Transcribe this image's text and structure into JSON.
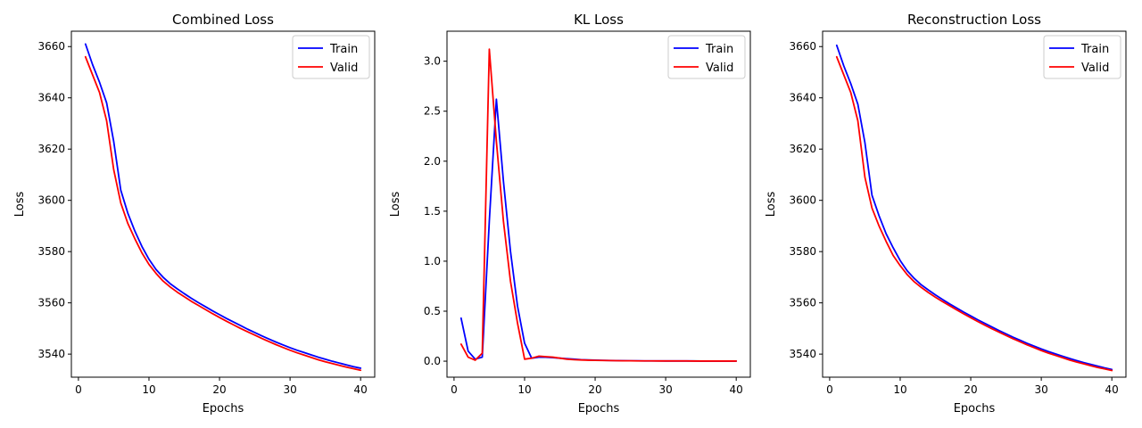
{
  "chart_data": [
    {
      "type": "line",
      "title": "Combined Loss",
      "xlabel": "Epochs",
      "ylabel": "Loss",
      "xlim": [
        -1,
        42
      ],
      "ylim": [
        3531,
        3666
      ],
      "xticks": [
        0,
        10,
        20,
        30,
        40
      ],
      "yticks": [
        3540,
        3560,
        3580,
        3600,
        3620,
        3640,
        3660
      ],
      "ytick_labels": [
        "3540",
        "3560",
        "3580",
        "3600",
        "3620",
        "3640",
        "3660"
      ],
      "legend_position": "top-right",
      "grid": false,
      "x": [
        1,
        2,
        3,
        4,
        5,
        6,
        7,
        8,
        9,
        10,
        11,
        12,
        13,
        14,
        15,
        16,
        17,
        18,
        19,
        20,
        21,
        22,
        23,
        24,
        25,
        26,
        27,
        28,
        29,
        30,
        31,
        32,
        33,
        34,
        35,
        36,
        37,
        38,
        39,
        40
      ],
      "series": [
        {
          "name": "Train",
          "color": "#0000ff",
          "values": [
            3661,
            3653,
            3646,
            3638,
            3623,
            3604,
            3595,
            3588,
            3582,
            3577,
            3573,
            3570,
            3567.5,
            3565.5,
            3563.6,
            3561.8,
            3560.1,
            3558.5,
            3556.9,
            3555.4,
            3553.9,
            3552.5,
            3551.1,
            3549.7,
            3548.4,
            3547.1,
            3545.9,
            3544.7,
            3543.6,
            3542.5,
            3541.5,
            3540.6,
            3539.7,
            3538.8,
            3538.0,
            3537.2,
            3536.5,
            3535.8,
            3535.1,
            3534.5
          ]
        },
        {
          "name": "Valid",
          "color": "#ff0000",
          "values": [
            3656,
            3649,
            3642,
            3631,
            3612,
            3599,
            3591,
            3585,
            3579.5,
            3575,
            3571.5,
            3568.5,
            3566.2,
            3564.2,
            3562.4,
            3560.6,
            3559.0,
            3557.4,
            3555.8,
            3554.3,
            3552.8,
            3551.4,
            3550.0,
            3548.7,
            3547.4,
            3546.1,
            3544.9,
            3543.7,
            3542.6,
            3541.5,
            3540.5,
            3539.6,
            3538.7,
            3537.8,
            3537.0,
            3536.3,
            3535.6,
            3534.9,
            3534.3,
            3533.7
          ]
        }
      ]
    },
    {
      "type": "line",
      "title": "KL Loss",
      "xlabel": "Epochs",
      "ylabel": "Loss",
      "xlim": [
        -1,
        42
      ],
      "ylim": [
        -0.16,
        3.3
      ],
      "xticks": [
        0,
        10,
        20,
        30,
        40
      ],
      "yticks": [
        0.0,
        0.5,
        1.0,
        1.5,
        2.0,
        2.5,
        3.0
      ],
      "ytick_labels": [
        "0.0",
        "0.5",
        "1.0",
        "1.5",
        "2.0",
        "2.5",
        "3.0"
      ],
      "legend_position": "top-right",
      "grid": false,
      "x": [
        1,
        2,
        3,
        4,
        5,
        6,
        7,
        8,
        9,
        10,
        11,
        12,
        13,
        14,
        15,
        16,
        17,
        18,
        19,
        20,
        21,
        22,
        23,
        24,
        25,
        26,
        27,
        28,
        29,
        30,
        31,
        32,
        33,
        34,
        35,
        36,
        37,
        38,
        39,
        40
      ],
      "series": [
        {
          "name": "Train",
          "color": "#0000ff",
          "values": [
            0.43,
            0.1,
            0.02,
            0.04,
            1.4,
            2.62,
            1.8,
            1.1,
            0.55,
            0.18,
            0.03,
            0.04,
            0.04,
            0.035,
            0.03,
            0.025,
            0.02,
            0.015,
            0.012,
            0.01,
            0.008,
            0.007,
            0.006,
            0.005,
            0.004,
            0.004,
            0.003,
            0.003,
            0.003,
            0.002,
            0.002,
            0.002,
            0.002,
            0.002,
            0.001,
            0.001,
            0.001,
            0.001,
            0.001,
            0.001
          ]
        },
        {
          "name": "Valid",
          "color": "#ff0000",
          "values": [
            0.17,
            0.04,
            0.01,
            0.08,
            3.12,
            2.2,
            1.4,
            0.8,
            0.38,
            0.02,
            0.03,
            0.05,
            0.045,
            0.04,
            0.03,
            0.02,
            0.015,
            0.012,
            0.01,
            0.008,
            0.007,
            0.006,
            0.005,
            0.004,
            0.004,
            0.003,
            0.003,
            0.003,
            0.002,
            0.002,
            0.002,
            0.002,
            0.002,
            0.001,
            0.001,
            0.001,
            0.001,
            0.001,
            0.001,
            0.001
          ]
        }
      ]
    },
    {
      "type": "line",
      "title": "Reconstruction Loss",
      "xlabel": "Epochs",
      "ylabel": "Loss",
      "xlim": [
        -1,
        42
      ],
      "ylim": [
        3531,
        3666
      ],
      "xticks": [
        0,
        10,
        20,
        30,
        40
      ],
      "yticks": [
        3540,
        3560,
        3580,
        3600,
        3620,
        3640,
        3660
      ],
      "ytick_labels": [
        "3540",
        "3560",
        "3580",
        "3600",
        "3620",
        "3640",
        "3660"
      ],
      "legend_position": "top-right",
      "grid": false,
      "x": [
        1,
        2,
        3,
        4,
        5,
        6,
        7,
        8,
        9,
        10,
        11,
        12,
        13,
        14,
        15,
        16,
        17,
        18,
        19,
        20,
        21,
        22,
        23,
        24,
        25,
        26,
        27,
        28,
        29,
        30,
        31,
        32,
        33,
        34,
        35,
        36,
        37,
        38,
        39,
        40
      ],
      "series": [
        {
          "name": "Train",
          "color": "#0000ff",
          "values": [
            3660.5,
            3652.5,
            3645.5,
            3637.5,
            3622.5,
            3602,
            3594,
            3587,
            3581.5,
            3576.5,
            3572.5,
            3569.5,
            3567,
            3565,
            3563.1,
            3561.3,
            3559.6,
            3558,
            3556.4,
            3554.9,
            3553.4,
            3552,
            3550.6,
            3549.2,
            3547.9,
            3546.6,
            3545.4,
            3544.2,
            3543.1,
            3542,
            3541,
            3540.1,
            3539.2,
            3538.3,
            3537.5,
            3536.7,
            3536,
            3535.3,
            3534.6,
            3534
          ]
        },
        {
          "name": "Valid",
          "color": "#ff0000",
          "values": [
            3656,
            3649,
            3642,
            3631,
            3609,
            3597,
            3590,
            3584,
            3578.5,
            3574.5,
            3571,
            3568.2,
            3566,
            3564,
            3562.2,
            3560.5,
            3558.9,
            3557.3,
            3555.7,
            3554.2,
            3552.7,
            3551.3,
            3549.9,
            3548.6,
            3547.3,
            3546,
            3544.8,
            3543.6,
            3542.5,
            3541.4,
            3540.4,
            3539.5,
            3538.6,
            3537.7,
            3536.9,
            3536.2,
            3535.5,
            3534.8,
            3534.2,
            3533.6
          ]
        }
      ]
    }
  ]
}
